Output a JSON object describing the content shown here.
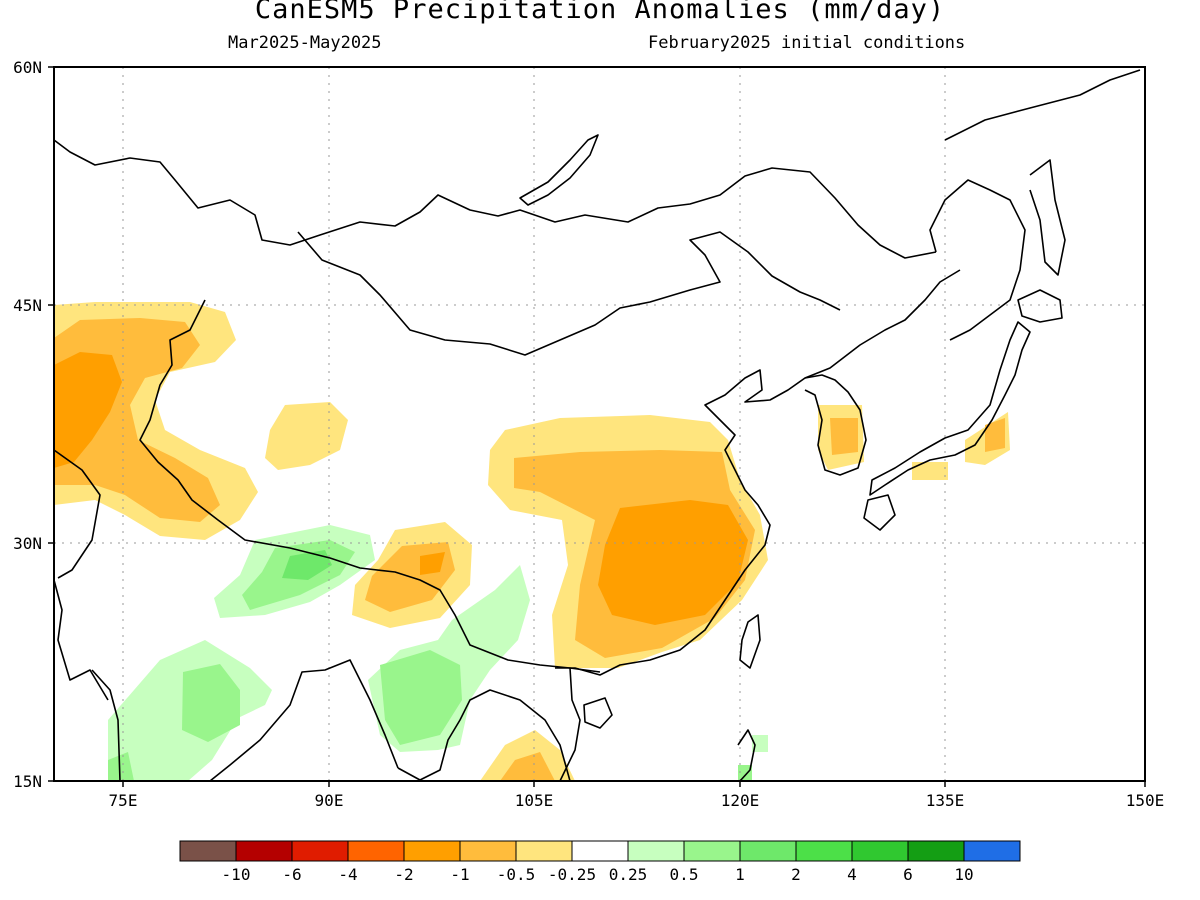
{
  "title": "CanESM5 Precipitation Anomalies (mm/day)",
  "subtitle_left": "Mar2025-May2025",
  "subtitle_right": "February2025 initial conditions",
  "lat_labels": [
    "15N",
    "30N",
    "45N",
    "60N"
  ],
  "lon_labels": [
    "75E",
    "90E",
    "105E",
    "120E",
    "135E",
    "150E"
  ],
  "colorbar": {
    "colors": [
      "#7a5148",
      "#b40000",
      "#e01c00",
      "#ff6400",
      "#ff9f00",
      "#ffbc3c",
      "#ffe57e",
      "#ffffff",
      "#c7ffbf",
      "#99f58c",
      "#6ee86a",
      "#4ce048",
      "#30c830",
      "#149e14",
      "#1f6ee6"
    ],
    "labels": [
      "-10",
      "-6",
      "-4",
      "-2",
      "-1",
      "-0.5",
      "-0.25",
      "0.25",
      "0.5",
      "1",
      "2",
      "4",
      "6",
      "10"
    ]
  }
}
